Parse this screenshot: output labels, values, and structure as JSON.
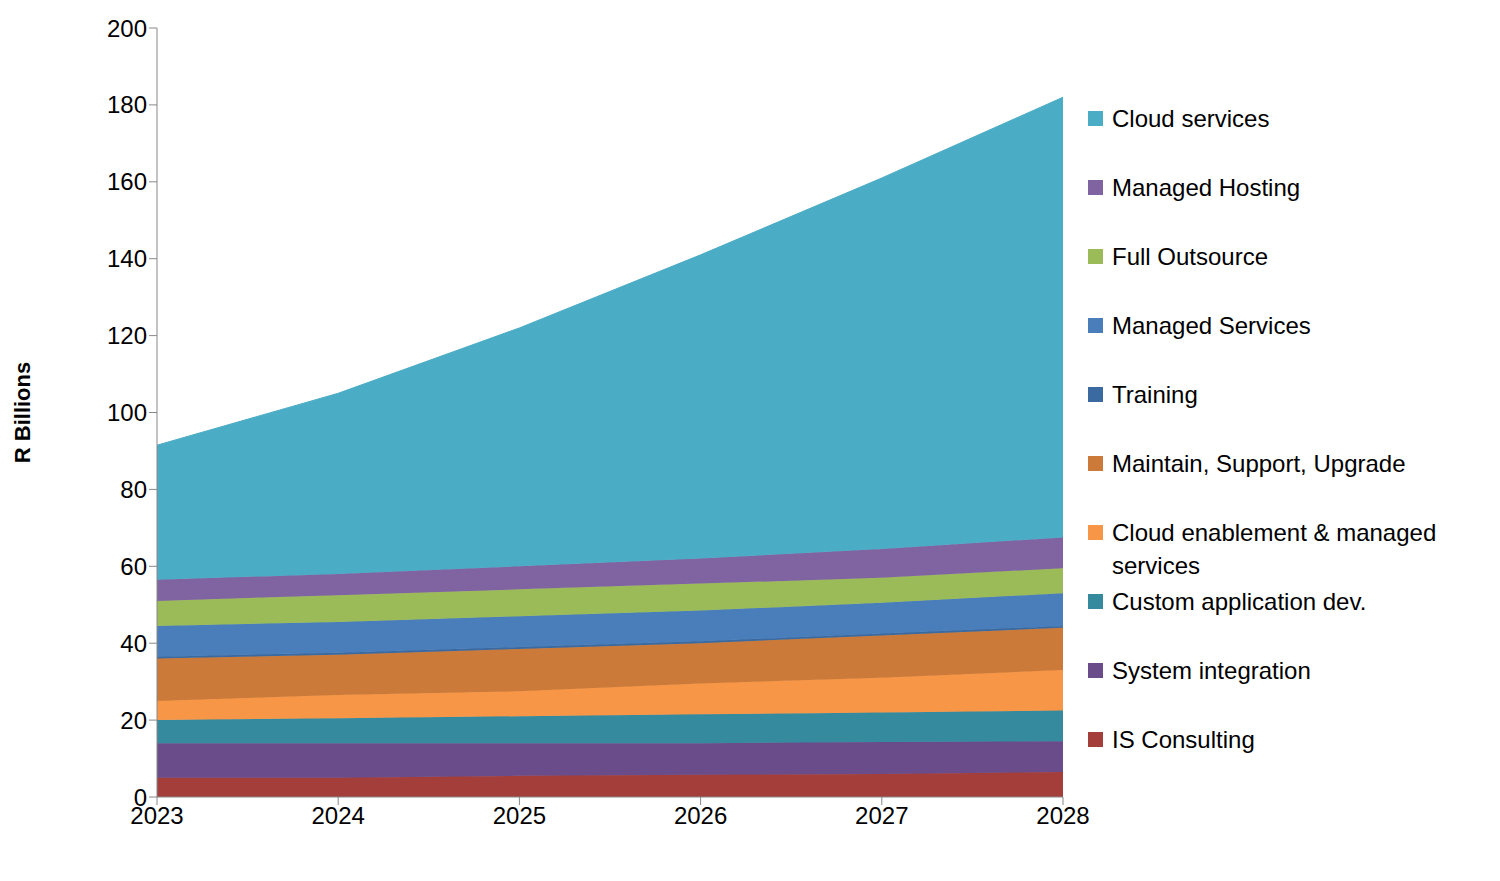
{
  "chart_data": {
    "type": "area",
    "stacked": true,
    "y_label": "R Billions",
    "categories": [
      "2023",
      "2024",
      "2025",
      "2026",
      "2027",
      "2028"
    ],
    "ylim": [
      0,
      200
    ],
    "yticks": [
      0,
      20,
      40,
      60,
      80,
      100,
      120,
      140,
      160,
      180,
      200
    ],
    "grid": false,
    "legend": "right",
    "series": [
      {
        "name": "IS Consulting",
        "color": "#a33e3a",
        "values": [
          5,
          5,
          5.5,
          5.8,
          6,
          6.5
        ]
      },
      {
        "name": "System integration",
        "color": "#6a4c8a",
        "values": [
          9,
          9,
          8.5,
          8.2,
          8.3,
          8
        ]
      },
      {
        "name": "Custom application dev.",
        "color": "#358a9e",
        "values": [
          6,
          6.5,
          7,
          7.5,
          7.7,
          8
        ]
      },
      {
        "name": "Cloud enablement & managed services",
        "color": "#f79646",
        "values": [
          5,
          6,
          6.5,
          8,
          9,
          10.5
        ]
      },
      {
        "name": "Maintain, Support, Upgrade",
        "color": "#cc7a39",
        "values": [
          11,
          10.5,
          11,
          10.5,
          11,
          11
        ]
      },
      {
        "name": "Training",
        "color": "#3b6aa0",
        "values": [
          0.5,
          0.5,
          0.5,
          0.5,
          0.5,
          0.5
        ]
      },
      {
        "name": "Managed Services",
        "color": "#4a7ebb",
        "values": [
          8,
          8,
          8,
          8,
          8,
          8.5
        ]
      },
      {
        "name": "Full Outsource",
        "color": "#9bbb59",
        "values": [
          6.5,
          7,
          7,
          7,
          6.5,
          6.5
        ]
      },
      {
        "name": "Managed Hosting",
        "color": "#8064a2",
        "values": [
          5.5,
          5.5,
          6,
          6.5,
          7.5,
          8
        ]
      },
      {
        "name": "Cloud services",
        "color": "#4bacc6",
        "values": [
          35,
          47,
          62,
          79,
          96.5,
          114.5
        ]
      }
    ]
  }
}
